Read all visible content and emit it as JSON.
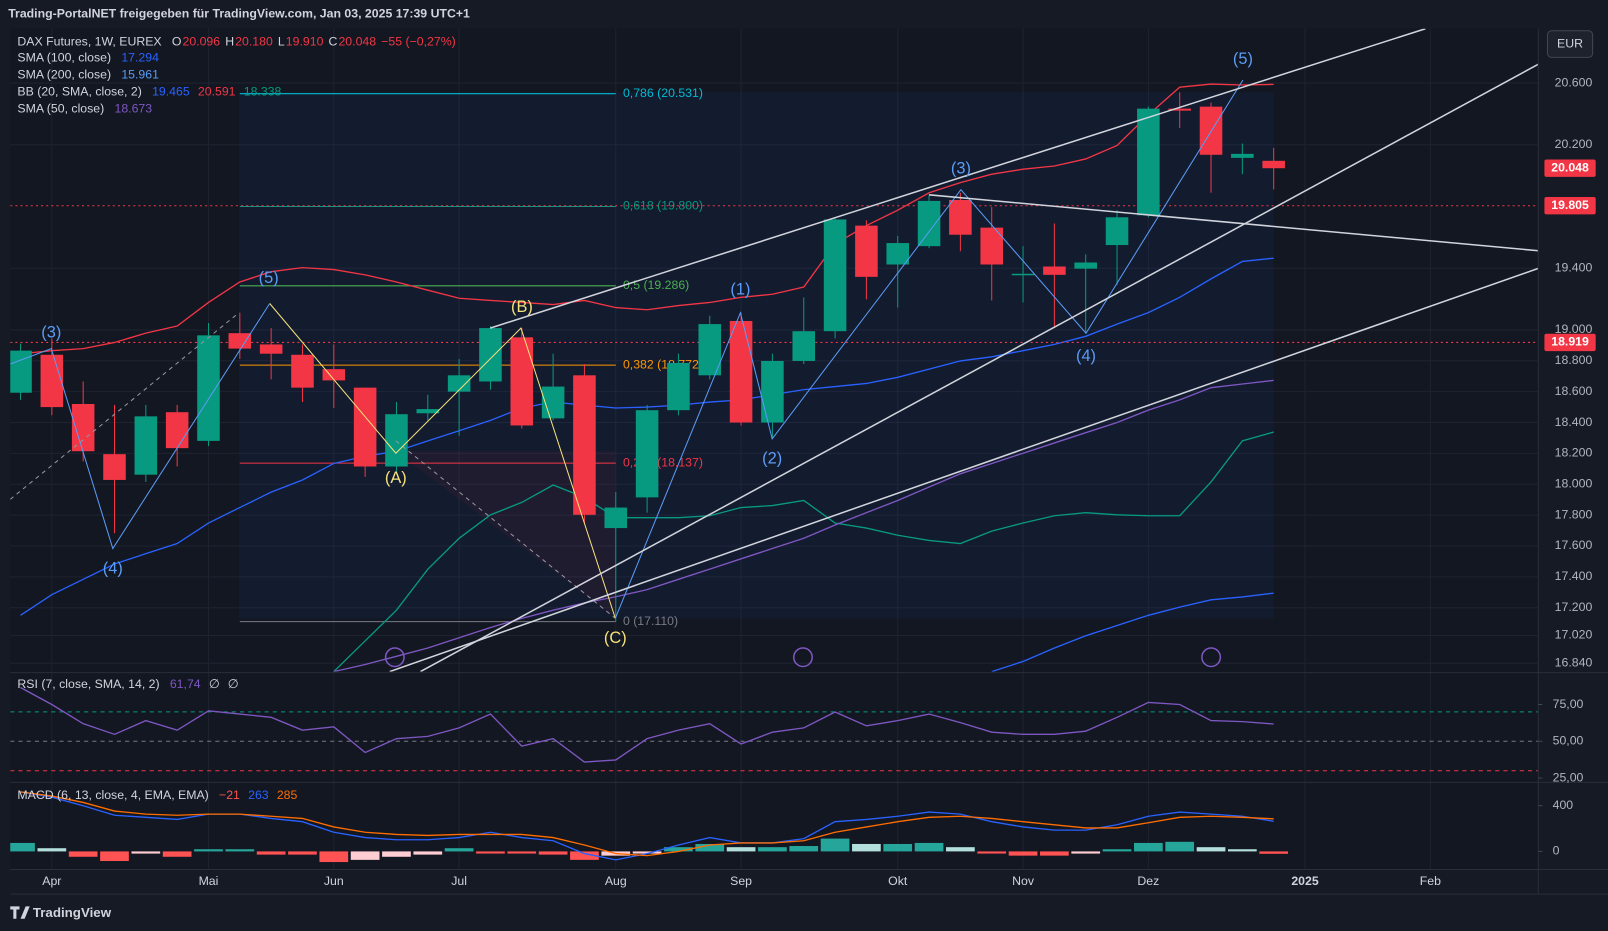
{
  "header": {
    "text": "Trading-PortalNET freigegeben für TradingView.com, Jan 03, 2025 17:39 UTC+1"
  },
  "footer": {
    "logo": "TradingView"
  },
  "currency": "EUR",
  "chart_data": [
    {
      "type": "candlestick",
      "title": "DAX Futures, 1W, EUREX",
      "ohlc_legend": [
        {
          "key": "O",
          "value": "20.096"
        },
        {
          "key": "H",
          "value": "20.180"
        },
        {
          "key": "L",
          "value": "19.910"
        },
        {
          "key": "C",
          "value": "20.048"
        }
      ],
      "change": "−55 (−0,27%)",
      "up_color": "#089981",
      "down_color": "#f23645",
      "categories": [
        null,
        "Apr",
        null,
        null,
        null,
        null,
        "Mai",
        null,
        null,
        null,
        "Jun",
        null,
        null,
        null,
        "Jul",
        null,
        null,
        null,
        null,
        "Aug",
        null,
        null,
        null,
        "Sep",
        null,
        null,
        null,
        null,
        "Okt",
        null,
        null,
        null,
        "Nov",
        null,
        null,
        null,
        "Dez",
        null,
        null,
        null,
        null,
        "2025",
        null,
        null,
        null,
        "Feb"
      ],
      "open": [
        18.593,
        18.839,
        18.52,
        18.195,
        18.062,
        18.467,
        18.281,
        18.979,
        18.906,
        18.839,
        18.746,
        18.626,
        18.115,
        18.46,
        18.6,
        18.666,
        18.952,
        18.427,
        18.706,
        17.716,
        17.915,
        18.48,
        18.706,
        19.058,
        18.4,
        18.799,
        18.992,
        19.676,
        19.424,
        19.543,
        19.842,
        19.663,
        19.357,
        19.411,
        19.397,
        19.55,
        19.743,
        20.434,
        20.447,
        20.115,
        20.096,
        null,
        null,
        null,
        null,
        null
      ],
      "high": [
        18.912,
        18.945,
        18.666,
        18.514,
        18.514,
        18.514,
        19.045,
        19.112,
        19.012,
        18.906,
        18.906,
        18.626,
        18.533,
        18.58,
        18.812,
        19.025,
        19.012,
        18.846,
        18.779,
        17.949,
        18.514,
        18.846,
        19.092,
        19.112,
        18.846,
        19.211,
        19.73,
        19.71,
        19.61,
        19.876,
        19.889,
        19.796,
        19.543,
        19.69,
        19.49,
        19.776,
        20.447,
        20.54,
        20.474,
        20.208,
        20.18,
        null,
        null,
        null,
        null,
        null
      ],
      "low": [
        18.547,
        18.447,
        18.148,
        17.683,
        18.015,
        18.115,
        18.248,
        18.812,
        18.68,
        18.533,
        18.494,
        18.048,
        18.082,
        18.414,
        18.314,
        18.613,
        18.361,
        18.414,
        17.749,
        17.11,
        17.816,
        18.447,
        18.679,
        18.381,
        18.294,
        18.779,
        18.945,
        19.198,
        19.145,
        19.53,
        19.51,
        19.191,
        19.178,
        19.012,
        18.979,
        19.291,
        19.73,
        20.308,
        19.889,
        20.009,
        19.91,
        null,
        null,
        null,
        null,
        null
      ],
      "close": [
        18.866,
        18.5,
        18.214,
        18.028,
        18.44,
        18.234,
        18.965,
        18.879,
        18.846,
        18.626,
        18.673,
        18.115,
        18.454,
        18.487,
        18.706,
        19.012,
        18.381,
        18.633,
        17.802,
        17.849,
        18.48,
        18.786,
        19.038,
        18.4,
        18.799,
        18.992,
        19.716,
        19.344,
        19.563,
        19.836,
        19.617,
        19.424,
        19.364,
        19.357,
        19.437,
        19.73,
        20.434,
        20.421,
        20.135,
        20.141,
        20.048,
        null,
        null,
        null,
        null,
        null
      ],
      "ylim": [
        16.786,
        20.952
      ],
      "yticks": [
        {
          "value": 16.84,
          "label": "16.840"
        },
        {
          "value": 17.02,
          "label": "17.020"
        },
        {
          "value": 17.2,
          "label": "17.200"
        },
        {
          "value": 17.4,
          "label": "17.400"
        },
        {
          "value": 17.6,
          "label": "17.600"
        },
        {
          "value": 17.8,
          "label": "17.800"
        },
        {
          "value": 18,
          "label": "18.000"
        },
        {
          "value": 18.2,
          "label": "18.200"
        },
        {
          "value": 18.4,
          "label": "18.400"
        },
        {
          "value": 18.6,
          "label": "18.600"
        },
        {
          "value": 18.8,
          "label": "18.800"
        },
        {
          "value": 19,
          "label": "19.000"
        },
        {
          "value": 19.4,
          "label": "19.400"
        },
        {
          "value": 20.2,
          "label": "20.200"
        },
        {
          "value": 20.6,
          "label": "20.600"
        }
      ],
      "grid": true,
      "series": [
        {
          "name": "SMA (100, close)",
          "color": "#2962ff",
          "value_labels": [
            "17.294"
          ],
          "values": [
            null,
            null,
            null,
            null,
            null,
            null,
            null,
            null,
            null,
            null,
            null,
            null,
            null,
            null,
            null,
            null,
            null,
            null,
            null,
            null,
            null,
            null,
            null,
            null,
            null,
            null,
            null,
            null,
            null,
            null,
            null,
            16.786,
            16.852,
            16.939,
            17.018,
            17.085,
            17.151,
            17.204,
            17.251,
            17.27,
            17.294,
            null,
            null,
            null,
            null,
            null
          ]
        },
        {
          "name": "SMA (200, close)",
          "color": "#5b9cf6",
          "value_labels": [
            "15.961"
          ]
        },
        {
          "name": "BB (20, SMA, close, 2)",
          "color": "#2962ff",
          "value_labels": [
            "19.465",
            "20.591",
            "18.338"
          ],
          "bands": [
            {
              "color": "#2962ff",
              "values": [
                17.151,
                17.284,
                17.384,
                17.483,
                17.55,
                17.616,
                17.749,
                17.849,
                17.949,
                18.028,
                18.135,
                18.181,
                18.214,
                18.281,
                18.347,
                18.414,
                18.494,
                18.533,
                18.513,
                18.494,
                18.5,
                18.513,
                18.533,
                18.547,
                18.58,
                18.613,
                18.633,
                18.653,
                18.693,
                18.746,
                18.799,
                18.826,
                18.866,
                18.906,
                18.959,
                19.038,
                19.112,
                19.211,
                19.331,
                19.444,
                19.465,
                null,
                null,
                null,
                null,
                null
              ]
            },
            {
              "color": "#f23645",
              "values": [
                18.846,
                18.866,
                18.879,
                18.919,
                18.979,
                19.025,
                19.178,
                19.311,
                19.377,
                19.404,
                19.391,
                19.357,
                19.311,
                19.258,
                19.205,
                19.191,
                19.178,
                19.165,
                19.191,
                19.145,
                19.131,
                19.158,
                19.178,
                19.211,
                19.231,
                19.278,
                19.557,
                19.676,
                19.776,
                19.889,
                19.955,
                20.009,
                20.042,
                20.062,
                20.108,
                20.195,
                20.394,
                20.573,
                20.593,
                20.587,
                20.591,
                null,
                null,
                null,
                null,
                null
              ]
            },
            {
              "color": "#089981",
              "values": [
                null,
                null,
                null,
                null,
                null,
                null,
                null,
                null,
                null,
                null,
                16.786,
                16.985,
                17.184,
                17.45,
                17.65,
                17.802,
                17.882,
                17.995,
                17.915,
                17.783,
                17.783,
                17.783,
                17.796,
                17.849,
                17.862,
                17.895,
                17.749,
                17.716,
                17.67,
                17.636,
                17.616,
                17.696,
                17.749,
                17.796,
                17.816,
                17.802,
                17.796,
                17.796,
                18.015,
                18.281,
                18.338,
                null,
                null,
                null,
                null,
                null
              ]
            }
          ]
        },
        {
          "name": "SMA (50, close)",
          "color": "#7e57c2",
          "value_labels": [
            "18.673"
          ],
          "values": [
            null,
            null,
            null,
            null,
            null,
            null,
            null,
            null,
            null,
            null,
            16.786,
            16.832,
            16.885,
            16.939,
            17.005,
            17.072,
            17.131,
            17.184,
            17.231,
            17.271,
            17.317,
            17.384,
            17.45,
            17.517,
            17.583,
            17.65,
            17.736,
            17.816,
            17.895,
            17.982,
            18.068,
            18.135,
            18.201,
            18.268,
            18.334,
            18.4,
            18.48,
            18.547,
            18.626,
            18.65,
            18.673,
            null,
            null,
            null,
            null,
            null
          ]
        }
      ],
      "fib_levels": [
        {
          "label": "0,786 (20.531)",
          "value": 20.531,
          "color": "#00bcd4"
        },
        {
          "label": "0,618 (19.800)",
          "value": 19.8,
          "color": "#089981"
        },
        {
          "label": "0,5 (19.286)",
          "value": 19.286,
          "color": "#4caf50"
        },
        {
          "label": "0,382 (18.772)",
          "value": 18.772,
          "color": "#ff9800"
        },
        {
          "label": "0,236 (18.137)",
          "value": 18.137,
          "color": "#f23645"
        },
        {
          "label": "0 (17.110)",
          "value": 17.11,
          "color": "#787b86"
        }
      ],
      "price_line_color": "#f23645",
      "price_lines": [
        {
          "value": 19.805,
          "label": "19.805"
        },
        {
          "value": 18.919,
          "label": "18.919"
        }
      ],
      "last_price": {
        "value": 20.048,
        "label": "20.048"
      },
      "wave_labels": [
        {
          "text": "(3)",
          "color": "#5b9cf6"
        },
        {
          "text": "(4)",
          "color": "#5b9cf6"
        },
        {
          "text": "(5)",
          "color": "#5b9cf6"
        },
        {
          "text": "(B)",
          "color": "#f5e27a"
        },
        {
          "text": "(A)",
          "color": "#f5e27a"
        },
        {
          "text": "(C)",
          "color": "#f5e27a"
        },
        {
          "text": "(1)",
          "color": "#5b9cf6"
        },
        {
          "text": "(2)",
          "color": "#5b9cf6"
        },
        {
          "text": "(3)",
          "color": "#5b9cf6"
        },
        {
          "text": "(4)",
          "color": "#5b9cf6"
        },
        {
          "text": "(5)",
          "color": "#5b9cf6"
        }
      ]
    },
    {
      "type": "line",
      "title": "RSI (7, close, SMA, 14, 2)",
      "legend_values": [
        "61,74",
        "∅",
        "∅"
      ],
      "color": "#7e57c2",
      "values": [
        86.6,
        75,
        62,
        54.7,
        64.1,
        57.6,
        70.7,
        68.5,
        66.3,
        57.6,
        59.8,
        42.4,
        51.8,
        53.3,
        59.1,
        68.5,
        46.7,
        51.8,
        35.9,
        37.3,
        51.8,
        57.6,
        62,
        48.2,
        56.2,
        59.1,
        69.9,
        60.5,
        64.1,
        68.5,
        62.7,
        56.2,
        54.7,
        54.7,
        56.9,
        66.3,
        76.4,
        75,
        64.1,
        63.4,
        61.74
      ],
      "ylim": [
        22.8,
        95.3
      ],
      "yticks": [
        {
          "value": 75,
          "label": "75,00"
        },
        {
          "value": 50,
          "label": "50,00"
        },
        {
          "value": 25,
          "label": "25,00"
        }
      ],
      "levels": [
        {
          "value": 70,
          "color": "#089981"
        },
        {
          "value": 50,
          "color": "#787b86"
        },
        {
          "value": 30,
          "color": "#f23645"
        }
      ]
    },
    {
      "type": "macd",
      "title": "MACD (6, 13, close, 4, EMA, EMA)",
      "legend_values": [
        "−21",
        "263",
        "285"
      ],
      "histogram": {
        "up_color": "#26a69a",
        "up_fade": "#b2dfdb",
        "down_color": "#ff5252",
        "down_fade": "#ffcdd2",
        "values": [
          74,
          28,
          -47,
          -84,
          -19,
          -47,
          19,
          19,
          -28,
          -28,
          -93,
          -74,
          -47,
          -28,
          28,
          -19,
          -19,
          -28,
          -74,
          -37,
          -19,
          37,
          65,
          37,
          37,
          47,
          112,
          65,
          65,
          74,
          37,
          -19,
          -37,
          -37,
          -19,
          19,
          74,
          84,
          37,
          19,
          -21
        ]
      },
      "macd": {
        "color": "#2962ff",
        "values": [
          521,
          474,
          400,
          316,
          298,
          279,
          326,
          326,
          288,
          260,
          167,
          121,
          102,
          102,
          121,
          167,
          121,
          93,
          -19,
          -74,
          -19,
          56,
          121,
          74,
          74,
          112,
          260,
          279,
          307,
          344,
          326,
          260,
          214,
          186,
          186,
          233,
          307,
          344,
          326,
          307,
          263
        ]
      },
      "signal": {
        "color": "#ff6d00",
        "values": [
          521,
          484,
          428,
          353,
          326,
          316,
          326,
          326,
          307,
          288,
          214,
          167,
          149,
          140,
          149,
          149,
          149,
          121,
          56,
          -19,
          -37,
          0,
          56,
          74,
          74,
          93,
          167,
          214,
          260,
          298,
          307,
          288,
          260,
          233,
          205,
          205,
          251,
          298,
          307,
          298,
          285
        ]
      },
      "ylim": [
        -158,
        586
      ],
      "yticks": [
        0,
        400
      ]
    }
  ]
}
